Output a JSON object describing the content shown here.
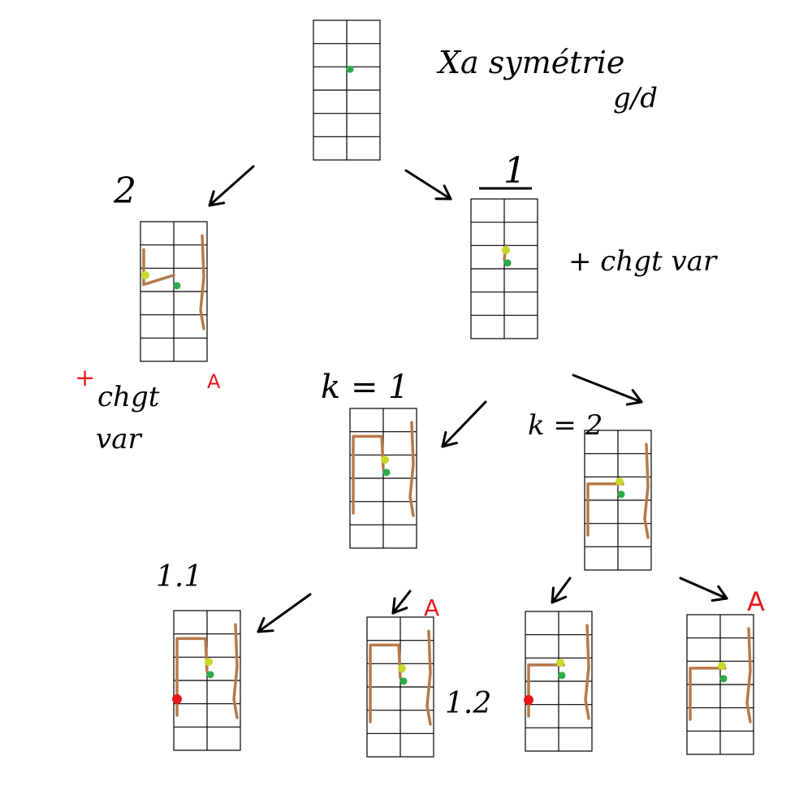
{
  "colors": {
    "ink": "#000000",
    "path": "#b5794a",
    "node": "#2eab4b",
    "marker": "#c8d82a",
    "alert": "#e8161b"
  },
  "labels": {
    "top_note_line1": "Xa symétrie",
    "top_note_line2": "g/d",
    "branch_2": "2",
    "branch_1": "1",
    "note_right": "+ chgt var",
    "note_left_line1": "chgt",
    "note_left_line2": "var",
    "k1": "k = 1",
    "k2": "k = 2",
    "leaf_1_1": "1.1",
    "leaf_1_2": "1.2",
    "alert_mark": "A"
  },
  "grids": [
    {
      "id": "root",
      "name": "grid-root",
      "paths": [],
      "markers": [],
      "nodes": [
        "node"
      ],
      "alerts": []
    },
    {
      "id": "b2",
      "name": "grid-branch-2",
      "paths": [
        "left-hook",
        "right-wall"
      ],
      "markers": [
        "marker-left"
      ],
      "nodes": [
        "node"
      ],
      "alerts": []
    },
    {
      "id": "b1",
      "name": "grid-branch-1",
      "paths": [
        "up-link"
      ],
      "markers": [
        "marker-up"
      ],
      "nodes": [
        "node"
      ],
      "alerts": []
    },
    {
      "id": "k1",
      "name": "grid-k1",
      "paths": [
        "loop-left",
        "right-wall"
      ],
      "markers": [
        "marker-up"
      ],
      "nodes": [
        "node"
      ],
      "alerts": []
    },
    {
      "id": "k2",
      "name": "grid-k2",
      "paths": [
        "bar-left",
        "right-wall"
      ],
      "markers": [
        "marker-up"
      ],
      "nodes": [
        "node"
      ],
      "alerts": []
    },
    {
      "id": "l11",
      "name": "grid-leaf-1-1",
      "paths": [
        "loop-left",
        "right-wall"
      ],
      "markers": [
        "marker-up"
      ],
      "nodes": [
        "node"
      ],
      "alerts": [
        "red-dot"
      ]
    },
    {
      "id": "l12",
      "name": "grid-leaf-1-2",
      "paths": [
        "loop-left",
        "right-wall"
      ],
      "markers": [
        "marker-up"
      ],
      "nodes": [
        "node"
      ],
      "alerts": []
    },
    {
      "id": "l21",
      "name": "grid-leaf-2-1",
      "paths": [
        "bar-left",
        "right-wall"
      ],
      "markers": [
        "marker-up"
      ],
      "nodes": [
        "node"
      ],
      "alerts": [
        "red-dot"
      ]
    },
    {
      "id": "l22",
      "name": "grid-leaf-2-2",
      "paths": [
        "bar-left",
        "right-wall"
      ],
      "markers": [
        "marker-up"
      ],
      "nodes": [
        "node"
      ],
      "alerts": []
    }
  ]
}
